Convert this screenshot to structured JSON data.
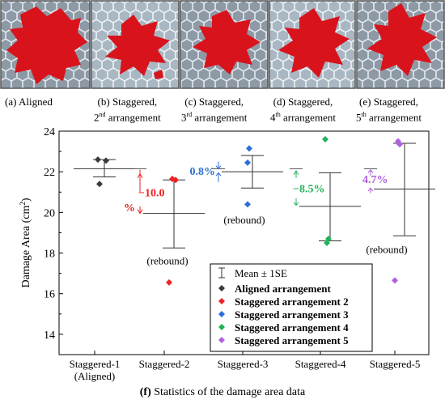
{
  "panels": [
    {
      "label_main": "(a) Aligned",
      "sup": "",
      "label_tail": ""
    },
    {
      "label_main": "(b) Staggered,",
      "num": "2",
      "sup": "nd",
      "label_tail": " arrangement"
    },
    {
      "label_main": "(c) Staggered,",
      "num": "3",
      "sup": "rd",
      "label_tail": " arrangement"
    },
    {
      "label_main": "(d) Staggered,",
      "num": "4",
      "sup": "th",
      "label_tail": " arrangement"
    },
    {
      "label_main": "(e) Staggered,",
      "num": "5",
      "sup": "th",
      "label_tail": " arrangement"
    }
  ],
  "caption": {
    "letter": "(f)",
    "text": " Statistics of the damage area data"
  },
  "colors": {
    "aligned": "#3a3a3a",
    "s2": "#ee2222",
    "s3": "#2b6fd6",
    "s4": "#22b25a",
    "s5": "#b060e0",
    "damage": "#d8131c"
  },
  "chart_data": {
    "type": "scatter",
    "ylabel": "Damage Area (cm",
    "ylabel_sup": "2",
    "ylabel_tail": ")",
    "ylim": [
      13,
      24
    ],
    "yticks": [
      14,
      16,
      18,
      20,
      22,
      24
    ],
    "categories": [
      "Staggered-1",
      "Staggered-2",
      "Staggered-3",
      "Staggered-4",
      "Staggered-5"
    ],
    "category_sublabels": [
      "(Aligned)",
      "",
      "",
      "",
      ""
    ],
    "series": [
      {
        "name": "Aligned arrangement",
        "color": "#3a3a3a",
        "values": [
          22.6,
          21.4,
          22.55
        ]
      },
      {
        "name": "Staggered arrangement 2",
        "color": "#ee2222",
        "values": [
          21.65,
          21.6,
          16.55
        ]
      },
      {
        "name": "Staggered arrangement 3",
        "color": "#2b6fd6",
        "values": [
          23.15,
          22.45,
          20.4
        ]
      },
      {
        "name": "Staggered arrangement 4",
        "color": "#22b25a",
        "values": [
          23.6,
          18.7,
          18.5
        ]
      },
      {
        "name": "Staggered arrangement 5",
        "color": "#b060e0",
        "values": [
          23.5,
          23.35,
          16.65
        ]
      }
    ],
    "errorbars": [
      {
        "mean": 22.15,
        "low": 21.75,
        "high": 22.6
      },
      {
        "mean": 19.95,
        "low": 18.25,
        "high": 21.6
      },
      {
        "mean": 22.0,
        "low": 21.2,
        "high": 22.8
      },
      {
        "mean": 20.3,
        "low": 18.6,
        "high": 21.95
      },
      {
        "mean": 21.15,
        "low": 18.85,
        "high": 23.4
      }
    ],
    "legend": {
      "mean_label": "Mean ± 1SE",
      "placement": "bottom-right"
    },
    "annotations": [
      {
        "text": "−10.0",
        "text2": "%",
        "color": "#ee2222",
        "category": 1
      },
      {
        "text": "0.8%",
        "color": "#2b6fd6",
        "category": 2
      },
      {
        "text": "−8.5%",
        "color": "#22b25a",
        "category": 3
      },
      {
        "text": "4.7%",
        "color": "#b060e0",
        "category": 4
      }
    ],
    "rebound_label": "(rebound)",
    "rebound_categories": [
      1,
      2,
      4
    ]
  }
}
